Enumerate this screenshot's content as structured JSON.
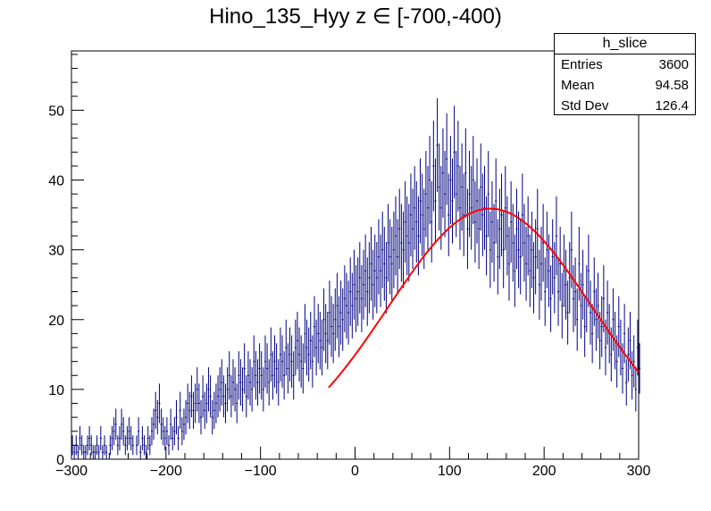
{
  "chart_data": {
    "type": "histogram",
    "title": "Hino_135_Hyy z  ∈ [-700,-400)",
    "xlim": [
      -300,
      300
    ],
    "ylim": [
      0,
      58.5
    ],
    "x_ticks": [
      -300,
      -200,
      -100,
      0,
      100,
      200,
      300
    ],
    "y_ticks": [
      0,
      10,
      20,
      30,
      40,
      50
    ],
    "line_color": "#000080",
    "fit_color": "#ff0000",
    "grid": false,
    "legend_position": "top-right",
    "bin_width": 2,
    "values": [
      2,
      1,
      2,
      1,
      3,
      2,
      1,
      1,
      2,
      3,
      2,
      1,
      1,
      2,
      1,
      3,
      1,
      2,
      1,
      0,
      2,
      3,
      4,
      5,
      2,
      3,
      5,
      4,
      2,
      3,
      4,
      3,
      2,
      0,
      2,
      4,
      1,
      3,
      2,
      1,
      3,
      2,
      4,
      5,
      7,
      6,
      8,
      5,
      4,
      3,
      4,
      2,
      5,
      3,
      4,
      6,
      3,
      7,
      4,
      5,
      6,
      8,
      7,
      9,
      7,
      8,
      10,
      8,
      6,
      9,
      7,
      8,
      10,
      9,
      6,
      7,
      8,
      9,
      10,
      11,
      9,
      8,
      10,
      12,
      9,
      11,
      10,
      8,
      12,
      11,
      10,
      13,
      9,
      12,
      11,
      10,
      14,
      12,
      11,
      13,
      12,
      10,
      14,
      13,
      11,
      15,
      12,
      14,
      13,
      11,
      15,
      14,
      12,
      16,
      13,
      15,
      14,
      12,
      16,
      17,
      15,
      14,
      13,
      18,
      16,
      15,
      17,
      14,
      19,
      16,
      18,
      17,
      16,
      20,
      18,
      17,
      21,
      19,
      18,
      20,
      22,
      19,
      21,
      20,
      23,
      22,
      21,
      24,
      22,
      25,
      23,
      24,
      26,
      23,
      25,
      27,
      24,
      26,
      28,
      25,
      27,
      26,
      29,
      27,
      30,
      28,
      26,
      31,
      29,
      28,
      30,
      32,
      29,
      33,
      31,
      30,
      34,
      32,
      31,
      35,
      33,
      36,
      34,
      32,
      37,
      35,
      33,
      38,
      36,
      40,
      34,
      42,
      37,
      45,
      39,
      36,
      41,
      38,
      43,
      35,
      40,
      37,
      44,
      38,
      42,
      36,
      39,
      35,
      41,
      33,
      38,
      36,
      40,
      34,
      37,
      33,
      39,
      35,
      36,
      32,
      38,
      30,
      34,
      31,
      37,
      29,
      33,
      35,
      30,
      36,
      32,
      28,
      34,
      31,
      27,
      33,
      30,
      29,
      35,
      31,
      28,
      32,
      27,
      30,
      26,
      29,
      33,
      25,
      28,
      31,
      24,
      30,
      27,
      23,
      29,
      26,
      32,
      24,
      28,
      22,
      27,
      25,
      21,
      26,
      30,
      23,
      24,
      20,
      28,
      22,
      25,
      19,
      23,
      27,
      21,
      18,
      24,
      20,
      22,
      17,
      19,
      23,
      16,
      21,
      18,
      15,
      20,
      17,
      14,
      19,
      16,
      13,
      18,
      11,
      15,
      17,
      12,
      14,
      10,
      16,
      13
    ]
  },
  "fit": {
    "type": "gaus",
    "constant": 35.9,
    "mean": 143,
    "sigma": 108,
    "range": [
      -28,
      300
    ]
  },
  "stats": {
    "name": "h_slice",
    "rows": [
      {
        "label": "Entries",
        "value": "3600"
      },
      {
        "label": "Mean",
        "value": "94.58"
      },
      {
        "label": "Std Dev",
        "value": "126.4"
      }
    ]
  }
}
